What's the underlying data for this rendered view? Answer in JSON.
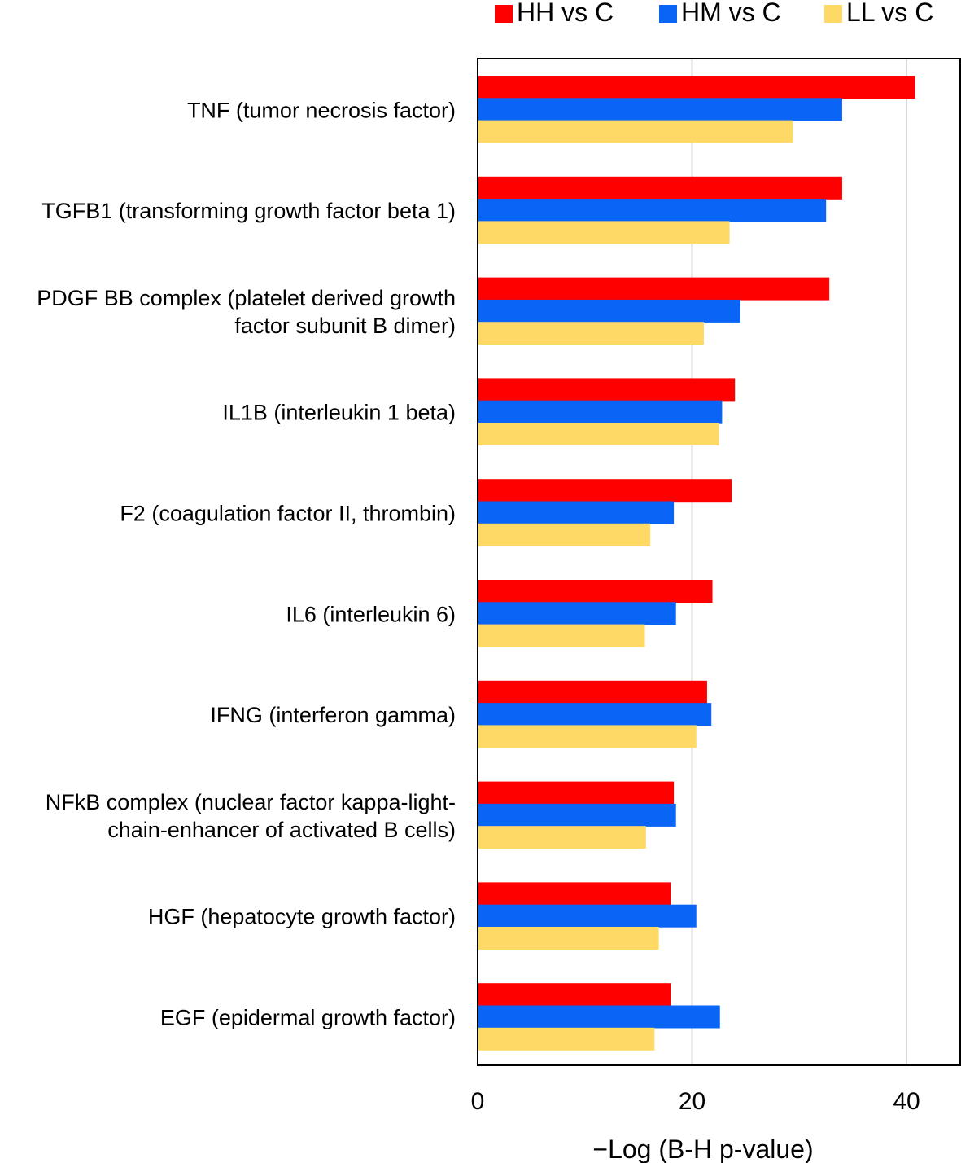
{
  "chart_data": {
    "type": "bar",
    "orientation": "horizontal",
    "title": "",
    "xlabel": "−Log (B-H p-value)",
    "ylabel": "",
    "xlim": [
      0,
      45
    ],
    "xticks": [
      0,
      20,
      40
    ],
    "grid": true,
    "legend_position": "top-right",
    "categories": [
      [
        "TNF (tumor necrosis factor)"
      ],
      [
        "TGFB1 (transforming growth factor beta 1)"
      ],
      [
        "PDGF BB complex (platelet derived growth",
        "factor subunit B dimer)"
      ],
      [
        "IL1B (interleukin 1 beta)"
      ],
      [
        "F2 (coagulation factor II, thrombin)"
      ],
      [
        "IL6 (interleukin 6)"
      ],
      [
        "IFNG (interferon gamma)"
      ],
      [
        "NFkB complex (nuclear factor kappa-light-",
        "chain-enhancer of activated B cells)"
      ],
      [
        "HGF (hepatocyte growth factor)"
      ],
      [
        "EGF (epidermal growth factor)"
      ]
    ],
    "series": [
      {
        "name": "HH vs C",
        "color": "#ff0000",
        "values": [
          40.8,
          34.0,
          32.8,
          24.0,
          23.7,
          21.9,
          21.4,
          18.3,
          18.0,
          18.0
        ]
      },
      {
        "name": "HM vs C",
        "color": "#0a64f5",
        "values": [
          34.0,
          32.5,
          24.5,
          22.8,
          18.3,
          18.5,
          21.8,
          18.5,
          20.4,
          22.6
        ]
      },
      {
        "name": "LL vs C",
        "color": "#ffd966",
        "values": [
          29.4,
          23.5,
          21.1,
          22.5,
          16.1,
          15.6,
          20.4,
          15.7,
          16.9,
          16.5
        ]
      }
    ]
  }
}
